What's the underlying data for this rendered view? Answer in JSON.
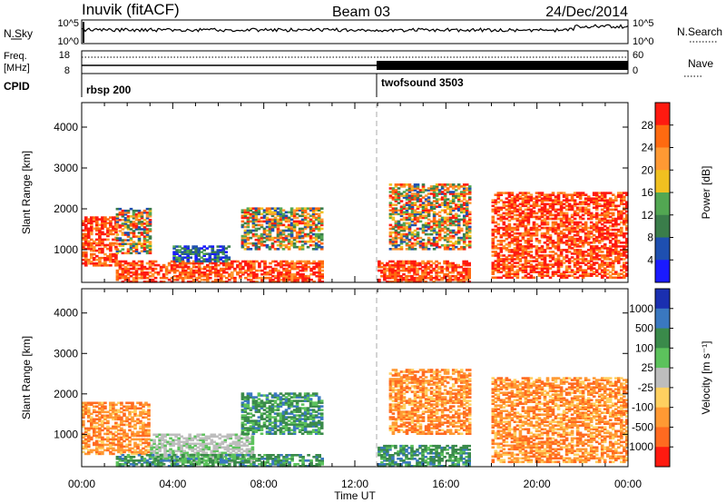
{
  "header": {
    "station": "Inuvik (fitACF)",
    "beam": "Beam 03",
    "date": "24/Dec/2014"
  },
  "top_panel": {
    "left_label": "N.Sky",
    "left_ticks": [
      "10^5",
      "10^0"
    ],
    "right_ticks": [
      "10^5",
      "10^0"
    ],
    "right_label": "N.Search",
    "freq_label_1": "Freq.",
    "freq_label_2": "[MHz]",
    "freq_ticks": [
      "18",
      "8"
    ],
    "nave_ticks": [
      "60",
      "0"
    ],
    "nave_label": "Nave",
    "cpid_label": "CPID",
    "cpid_segments": [
      "rbsp 200",
      "twofsound 3503"
    ]
  },
  "chart_data": [
    {
      "type": "heatmap",
      "name": "power",
      "xlabel": "",
      "ylabel": "Slant Range [km]",
      "ylim": [
        200,
        4600
      ],
      "yticks": [
        "1000",
        "2000",
        "3000",
        "4000"
      ],
      "colorbar": {
        "label": "Power [dB]",
        "ticks": [
          "4",
          "8",
          "12",
          "16",
          "20",
          "24",
          "28"
        ],
        "colors": [
          "#1a1aff",
          "#1e4fb0",
          "#3a7d4a",
          "#52a752",
          "#f0c020",
          "#ff9933",
          "#ff6a10",
          "#ff1a10"
        ]
      },
      "regions": [
        {
          "t0": 0.0,
          "t1": 1.5,
          "r0": 600,
          "r1": 1800,
          "level": "high"
        },
        {
          "t0": 1.5,
          "t1": 3.0,
          "r0": 900,
          "r1": 2000,
          "level": "mixed"
        },
        {
          "t0": 1.5,
          "t1": 10.5,
          "r0": 200,
          "r1": 700,
          "level": "high"
        },
        {
          "t0": 4.0,
          "t1": 6.5,
          "r0": 700,
          "r1": 1100,
          "level": "low"
        },
        {
          "t0": 7.0,
          "t1": 10.5,
          "r0": 1000,
          "r1": 2000,
          "level": "mixed"
        },
        {
          "t0": 13.0,
          "t1": 17.0,
          "r0": 200,
          "r1": 700,
          "level": "high"
        },
        {
          "t0": 13.5,
          "t1": 17.0,
          "r0": 1000,
          "r1": 2600,
          "level": "mixed"
        },
        {
          "t0": 18.0,
          "t1": 24.0,
          "r0": 300,
          "r1": 2400,
          "level": "high"
        }
      ]
    },
    {
      "type": "heatmap",
      "name": "velocity",
      "xlabel": "Time UT",
      "ylabel": "Slant Range [km]",
      "ylim": [
        200,
        4600
      ],
      "yticks": [
        "1000",
        "2000",
        "3000",
        "4000"
      ],
      "xticks": [
        "00:00",
        "04:00",
        "08:00",
        "12:00",
        "16:00",
        "20:00",
        "00:00"
      ],
      "colorbar": {
        "label": "Velocity [m s⁻¹]",
        "ticks": [
          "1000",
          "500",
          "100",
          "25",
          "-25",
          "-100",
          "-500",
          "-1000"
        ],
        "colors": [
          "#1a2fb0",
          "#3a78c0",
          "#3a8a4a",
          "#5cc25c",
          "#bdbdbd",
          "#ffd060",
          "#ff9933",
          "#ff6a20",
          "#ff1a10"
        ]
      },
      "regions": [
        {
          "t0": 0.0,
          "t1": 3.0,
          "r0": 500,
          "r1": 1800,
          "level": "orange"
        },
        {
          "t0": 3.0,
          "t1": 7.5,
          "r0": 300,
          "r1": 1000,
          "level": "gray"
        },
        {
          "t0": 1.5,
          "t1": 10.5,
          "r0": 200,
          "r1": 500,
          "level": "green"
        },
        {
          "t0": 7.0,
          "t1": 10.5,
          "r0": 1000,
          "r1": 2000,
          "level": "green"
        },
        {
          "t0": 13.0,
          "t1": 17.0,
          "r0": 200,
          "r1": 700,
          "level": "green"
        },
        {
          "t0": 13.5,
          "t1": 17.0,
          "r0": 1000,
          "r1": 2600,
          "level": "orange"
        },
        {
          "t0": 18.0,
          "t1": 24.0,
          "r0": 300,
          "r1": 2400,
          "level": "orange"
        }
      ]
    }
  ],
  "mode_change_hour": 13.0
}
